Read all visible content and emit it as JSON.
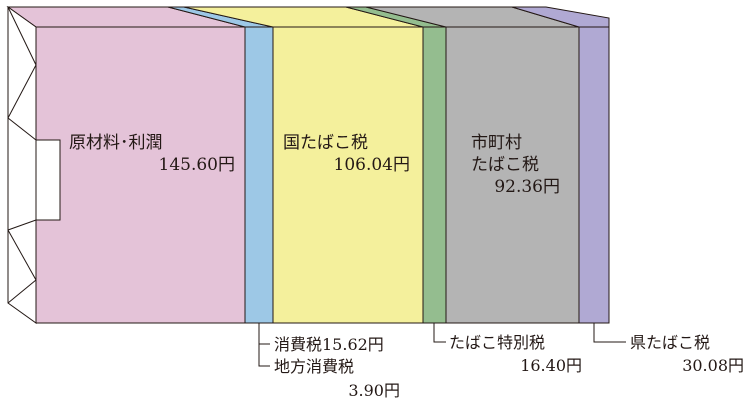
{
  "chart_data": {
    "type": "bar",
    "orientation": "stacked-horizontal",
    "unit": "円",
    "segments": [
      {
        "name": "原材料・利潤",
        "value": 145.6,
        "value_label": "145.60円",
        "color": "#e4c3d8"
      },
      {
        "name": "消費税",
        "value": 15.62,
        "value_label": "15.62円",
        "color": "#9dc8e6"
      },
      {
        "name": "国たばこ税",
        "value": 106.04,
        "value_label": "106.04円",
        "color": "#f4f09c"
      },
      {
        "name": "地方消費税",
        "value": 3.9,
        "value_label": "3.90円",
        "color": "#94bd8f"
      },
      {
        "name": "市町村たばこ税",
        "value": 92.36,
        "value_label": "92.36円",
        "color": "#b4b4b4"
      },
      {
        "name": "たばこ特別税",
        "value": 16.4,
        "value_label": "16.40円",
        "color": "#b0a9d3"
      },
      {
        "name": "県たばこ税",
        "value": 30.08,
        "value_label": "30.08円",
        "color": "#b0a9d3"
      }
    ]
  },
  "labels": {
    "raw": {
      "name": "原材料･利潤",
      "value": "145.60円"
    },
    "kuni": {
      "name": "国たばこ税",
      "value": "106.04円"
    },
    "shichoson": {
      "line1": "市町村",
      "line2": "たばこ税",
      "value": "92.36円"
    },
    "shohi": "消費税15.62円",
    "chiho": {
      "name": "地方消費税",
      "value": "3.90円"
    },
    "tokubetsu": {
      "name": "たばこ特別税",
      "value": "16.40円"
    },
    "ken": {
      "name": "県たばこ税",
      "value": "30.08円"
    }
  }
}
